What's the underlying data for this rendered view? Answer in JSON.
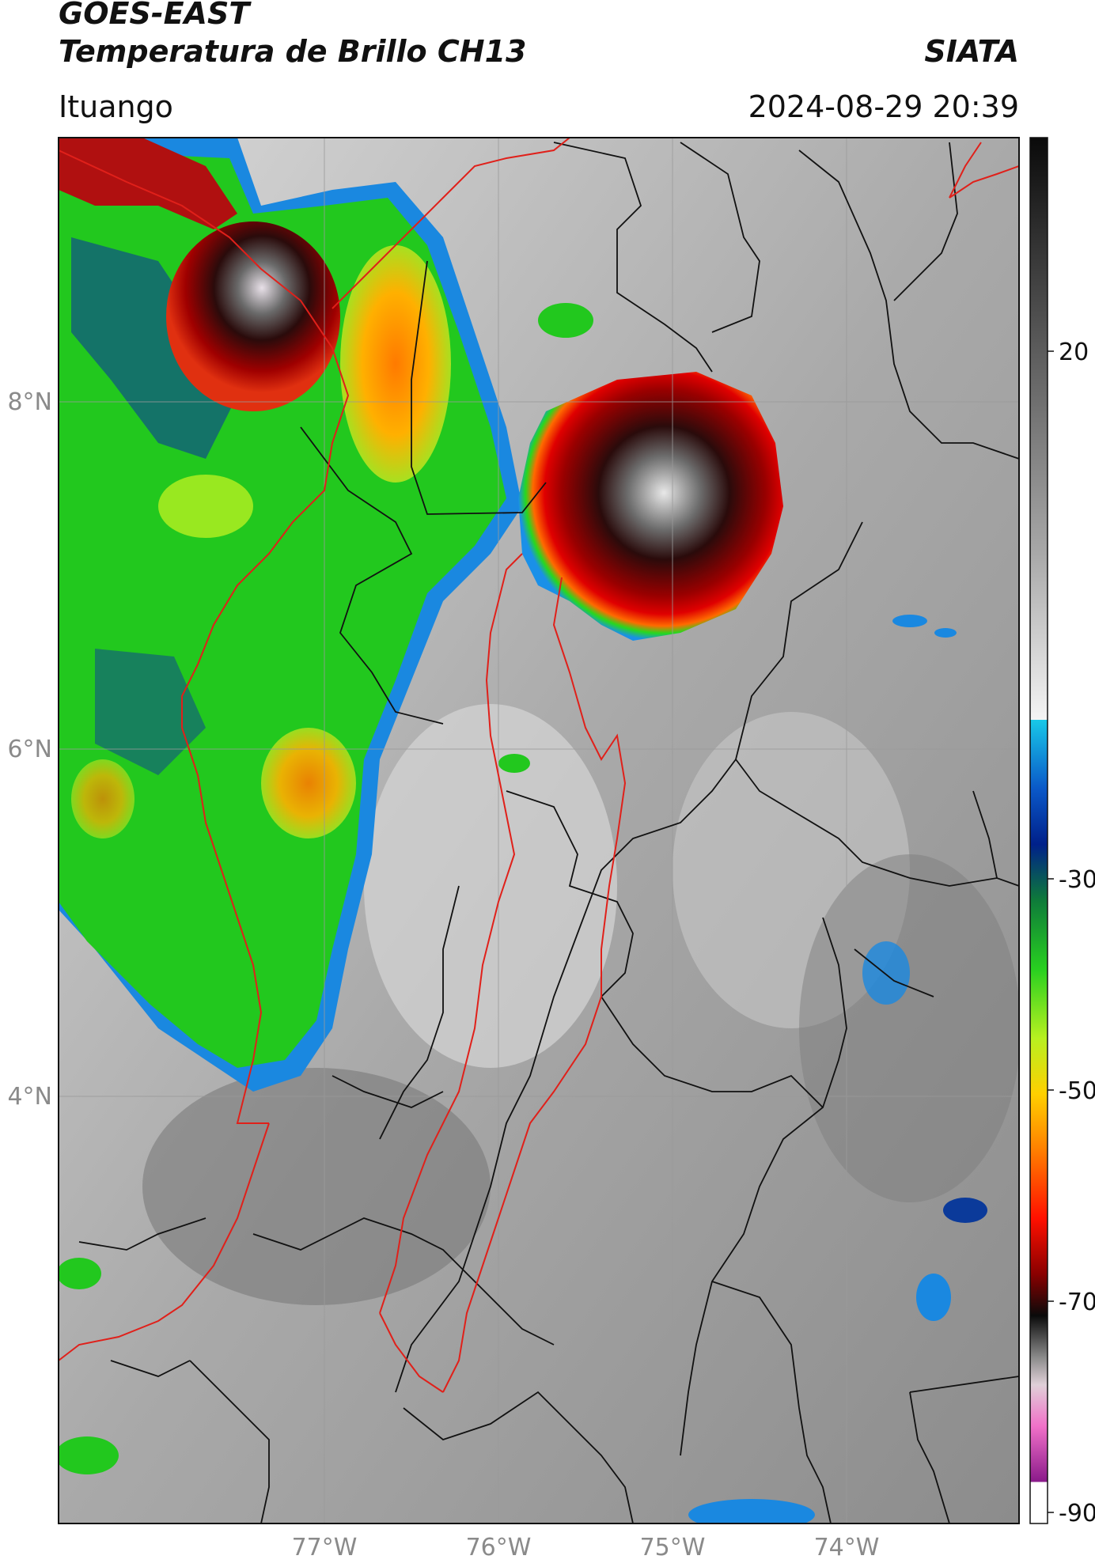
{
  "header": {
    "satellite": "GOES-EAST",
    "product": "Temperatura de Brillo CH13",
    "organization": "SIATA",
    "location": "Ituango",
    "datetime": "2024-08-29 20:39"
  },
  "map": {
    "latitude_labels": [
      "8°N",
      "6°N",
      "4°N"
    ],
    "longitude_labels": [
      "77°W",
      "76°W",
      "75°W",
      "74°W"
    ],
    "colors": {
      "border_red": "#e0201a",
      "border_black": "#111111",
      "graticule": "#9a9a9a"
    }
  },
  "colorbar": {
    "tick_labels": [
      "20",
      "-30",
      "-50",
      "-70",
      "-90"
    ],
    "unit_note": ""
  }
}
